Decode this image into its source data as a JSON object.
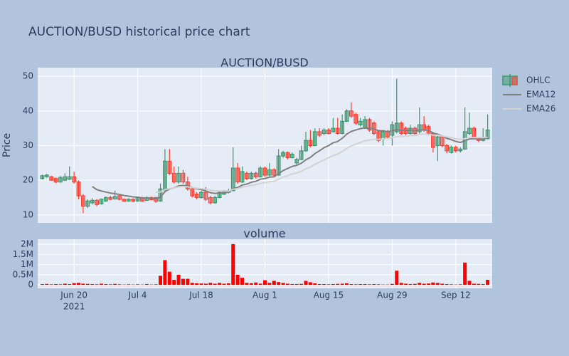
{
  "title": "AUCTION/BUSD historical price chart",
  "chart_data": [
    {
      "type": "candlestick",
      "title": "AUCTION/BUSD",
      "ylabel": "Price",
      "name": "OHLC",
      "increasing_color": "#3d9970",
      "decreasing_color": "#ff4136",
      "x": [
        "2021-06-13",
        "2021-06-14",
        "2021-06-15",
        "2021-06-16",
        "2021-06-17",
        "2021-06-18",
        "2021-06-19",
        "2021-06-20",
        "2021-06-21",
        "2021-06-22",
        "2021-06-23",
        "2021-06-24",
        "2021-06-25",
        "2021-06-26",
        "2021-06-27",
        "2021-06-28",
        "2021-06-29",
        "2021-06-30",
        "2021-07-01",
        "2021-07-02",
        "2021-07-03",
        "2021-07-04",
        "2021-07-05",
        "2021-07-06",
        "2021-07-07",
        "2021-07-08",
        "2021-07-09",
        "2021-07-10",
        "2021-07-11",
        "2021-07-12",
        "2021-07-13",
        "2021-07-14",
        "2021-07-15",
        "2021-07-16",
        "2021-07-17",
        "2021-07-18",
        "2021-07-19",
        "2021-07-20",
        "2021-07-21",
        "2021-07-22",
        "2021-07-23",
        "2021-07-24",
        "2021-07-25",
        "2021-07-26",
        "2021-07-27",
        "2021-07-28",
        "2021-07-29",
        "2021-07-30",
        "2021-07-31",
        "2021-08-01",
        "2021-08-02",
        "2021-08-03",
        "2021-08-04",
        "2021-08-05",
        "2021-08-06",
        "2021-08-07",
        "2021-08-08",
        "2021-08-09",
        "2021-08-10",
        "2021-08-11",
        "2021-08-12",
        "2021-08-13",
        "2021-08-14",
        "2021-08-15",
        "2021-08-16",
        "2021-08-17",
        "2021-08-18",
        "2021-08-19",
        "2021-08-20",
        "2021-08-21",
        "2021-08-22",
        "2021-08-23",
        "2021-08-24",
        "2021-08-25",
        "2021-08-26",
        "2021-08-27",
        "2021-08-28",
        "2021-08-29",
        "2021-08-30",
        "2021-08-31",
        "2021-09-01",
        "2021-09-02",
        "2021-09-03",
        "2021-09-04",
        "2021-09-05",
        "2021-09-06",
        "2021-09-07",
        "2021-09-08",
        "2021-09-09",
        "2021-09-10",
        "2021-09-11",
        "2021-09-12",
        "2021-09-13",
        "2021-09-14",
        "2021-09-15",
        "2021-09-16",
        "2021-09-17",
        "2021-09-18",
        "2021-09-19"
      ],
      "open": [
        20.5,
        21,
        21,
        20.5,
        19.5,
        20,
        20.3,
        21,
        19.5,
        15.5,
        12.5,
        13.5,
        14.2,
        13.2,
        14,
        15,
        14.6,
        15.5,
        14.5,
        14,
        14.5,
        14,
        15,
        14.2,
        15,
        15,
        14,
        17,
        25.5,
        22,
        19.5,
        22,
        19.5,
        17.5,
        16,
        15,
        16.5,
        15,
        13.5,
        15,
        16,
        16.5,
        17,
        23.5,
        19.5,
        22,
        20.5,
        22,
        21,
        23.5,
        21.5,
        23,
        21.5,
        27,
        28,
        26.5,
        25,
        26,
        28.5,
        31.5,
        30,
        34,
        33.5,
        34.5,
        34,
        35,
        33.5,
        37,
        40,
        39,
        36,
        35,
        37.5,
        36.5,
        34,
        32,
        34,
        33,
        34,
        36.5,
        35,
        33.5,
        35,
        34,
        36,
        35.5,
        33.5,
        30,
        32.5,
        30,
        28,
        29.5,
        28.5,
        29,
        33.5,
        35,
        32,
        31.5,
        32
      ],
      "high": [
        21.6,
        21.8,
        21.3,
        20.8,
        21.2,
        22,
        24,
        22.5,
        20,
        16,
        14.5,
        14.8,
        14.5,
        14.8,
        15.3,
        15.5,
        17,
        15.8,
        14.8,
        14.8,
        14.8,
        15.3,
        15.2,
        15.3,
        15.3,
        15.2,
        19,
        29,
        29,
        24,
        24,
        23,
        21,
        18,
        16.5,
        17,
        18,
        15.5,
        15.5,
        17,
        17.2,
        17.5,
        29.5,
        25,
        24,
        22.5,
        22.5,
        22.5,
        24,
        24,
        25,
        23.5,
        29,
        28.5,
        28.3,
        28,
        26.5,
        30,
        34,
        34.5,
        35,
        35,
        35,
        35,
        38,
        38,
        39,
        40.5,
        42.5,
        39.5,
        38,
        38.5,
        38,
        37,
        34.5,
        34.5,
        34.5,
        37,
        49.3,
        37,
        35.5,
        36,
        35.5,
        41,
        38.5,
        36,
        34,
        33,
        33,
        30.5,
        30,
        30,
        29.5,
        41,
        39.5,
        35.5,
        32.5,
        35,
        39
      ],
      "low": [
        20.2,
        20.7,
        19.8,
        19.2,
        19.3,
        19.8,
        20,
        19,
        14.5,
        10.5,
        12,
        13,
        12.5,
        13,
        13.8,
        14.2,
        14.4,
        14.2,
        13.8,
        13.8,
        13.7,
        13.8,
        13.8,
        14,
        14.2,
        13.5,
        13.8,
        16.5,
        21.5,
        19,
        19,
        19,
        17,
        15,
        14.5,
        14.7,
        14,
        13,
        13.2,
        14.8,
        15.7,
        16.2,
        16.8,
        19,
        19.2,
        20,
        20.2,
        20.5,
        20.8,
        21,
        21.2,
        21,
        21.3,
        26.5,
        26,
        26.3,
        24.5,
        25.8,
        28.2,
        29.5,
        29.8,
        32.5,
        33,
        33.2,
        33.8,
        33.2,
        33.3,
        36.8,
        38,
        36,
        35.5,
        34.8,
        34,
        33,
        31,
        30,
        32,
        30,
        33.5,
        33,
        33,
        33.2,
        33,
        33.5,
        34,
        33,
        28,
        25.5,
        29.5,
        27.8,
        27.7,
        28,
        28,
        28.8,
        33,
        32,
        31,
        31.2,
        31.8
      ],
      "close": [
        21.3,
        21.5,
        20,
        19.5,
        20.8,
        21,
        21,
        19.5,
        15.5,
        12.5,
        14,
        14.2,
        13,
        14.5,
        15,
        14.5,
        15.3,
        14.5,
        14,
        14.5,
        14,
        15,
        14,
        15,
        14.4,
        14,
        17.5,
        25.5,
        22,
        19.5,
        22,
        19.5,
        17.5,
        15.5,
        15,
        16.5,
        14.5,
        13.5,
        15,
        16.5,
        16.8,
        17,
        23.5,
        19.5,
        22.5,
        20.5,
        22,
        21,
        23.5,
        21.5,
        23,
        21.5,
        27,
        28,
        26.5,
        27.5,
        26,
        28.5,
        31.5,
        30,
        34,
        33,
        34.5,
        33.5,
        35,
        33.5,
        37,
        40,
        38.5,
        36.5,
        37,
        37.5,
        34.5,
        33.5,
        31.5,
        34,
        32.5,
        36,
        36.5,
        33.5,
        33.5,
        35,
        33.5,
        36,
        34.5,
        33.5,
        29.5,
        32.5,
        30,
        28.5,
        29.5,
        28.5,
        29,
        34,
        35,
        32.5,
        31.5,
        32,
        34.5
      ],
      "series": [
        {
          "name": "EMA12",
          "color": "#808080",
          "values": [
            null,
            null,
            null,
            null,
            null,
            null,
            null,
            null,
            null,
            null,
            null,
            18.2,
            17.3,
            16.9,
            16.6,
            16.3,
            16.1,
            15.9,
            15.6,
            15.4,
            15.2,
            15.1,
            14.9,
            14.9,
            14.8,
            14.7,
            15.1,
            16.7,
            17.5,
            17.8,
            18.4,
            18.5,
            18.4,
            17.9,
            17.5,
            17.3,
            16.9,
            16.4,
            16.2,
            16.3,
            16.4,
            16.5,
            17.6,
            17.9,
            18.6,
            18.9,
            19.4,
            19.7,
            20.3,
            20.5,
            20.9,
            21.0,
            21.9,
            22.8,
            23.4,
            24.0,
            24.3,
            24.9,
            25.9,
            26.6,
            27.7,
            28.5,
            29.4,
            30.0,
            30.8,
            31.2,
            32.1,
            33.3,
            34.1,
            34.5,
            34.9,
            35.1,
            35.0,
            34.8,
            34.3,
            34.3,
            34.0,
            34.3,
            34.6,
            34.4,
            34.4,
            34.4,
            34.3,
            34.5,
            34.5,
            34.4,
            33.6,
            33.3,
            32.8,
            32.1,
            31.7,
            31.2,
            30.9,
            31.4,
            31.9,
            32.0,
            31.9,
            31.9,
            32.3
          ]
        },
        {
          "name": "EMA26",
          "color": "#d3d3d3",
          "values": [
            null,
            null,
            null,
            null,
            null,
            null,
            null,
            null,
            null,
            null,
            null,
            null,
            null,
            null,
            null,
            null,
            null,
            null,
            null,
            null,
            null,
            null,
            null,
            null,
            null,
            16.5,
            16.6,
            17.3,
            17.6,
            17.8,
            18.1,
            18.2,
            18.1,
            17.9,
            17.7,
            17.6,
            17.4,
            17.1,
            16.9,
            16.9,
            16.9,
            16.9,
            17.4,
            17.6,
            18.0,
            18.2,
            18.5,
            18.7,
            19.1,
            19.3,
            19.6,
            19.7,
            20.3,
            20.9,
            21.3,
            21.8,
            22.1,
            22.6,
            23.3,
            23.8,
            24.6,
            25.2,
            25.9,
            26.5,
            27.1,
            27.6,
            28.3,
            29.2,
            29.9,
            30.4,
            30.9,
            31.4,
            31.6,
            31.8,
            31.8,
            32.0,
            32.0,
            32.3,
            32.6,
            32.7,
            32.7,
            32.9,
            32.9,
            33.2,
            33.3,
            33.3,
            33.0,
            33.0,
            32.8,
            32.5,
            32.3,
            32.0,
            31.8,
            32.0,
            32.3,
            32.3,
            32.3,
            32.3,
            32.4
          ]
        }
      ],
      "ylim": [
        7.7,
        52.5
      ],
      "yticks": [
        10,
        20,
        30,
        40,
        50
      ],
      "grid": true,
      "legend": "right"
    },
    {
      "type": "bar",
      "title": "volume",
      "color": "#ff0000",
      "values": [
        40000,
        50000,
        30000,
        40000,
        30000,
        60000,
        40000,
        90000,
        100000,
        60000,
        50000,
        40000,
        30000,
        60000,
        40000,
        30000,
        50000,
        30000,
        20000,
        30000,
        20000,
        30000,
        20000,
        40000,
        20000,
        30000,
        450000,
        1220000,
        650000,
        250000,
        500000,
        300000,
        300000,
        100000,
        80000,
        70000,
        60000,
        100000,
        60000,
        100000,
        60000,
        80000,
        2010000,
        500000,
        350000,
        100000,
        80000,
        120000,
        60000,
        230000,
        100000,
        200000,
        140000,
        100000,
        60000,
        40000,
        40000,
        50000,
        200000,
        130000,
        80000,
        40000,
        40000,
        30000,
        40000,
        50000,
        60000,
        80000,
        40000,
        30000,
        40000,
        40000,
        30000,
        40000,
        30000,
        20000,
        20000,
        50000,
        700000,
        100000,
        60000,
        40000,
        50000,
        100000,
        60000,
        70000,
        120000,
        100000,
        60000,
        40000,
        30000,
        20000,
        30000,
        1100000,
        200000,
        60000,
        50000,
        40000,
        250000
      ],
      "xlim": [
        "2021-06-12",
        "2021-09-20"
      ],
      "xticks": [
        {
          "value": "2021-06-20",
          "label": "Jun 20",
          "sublabel": "2021"
        },
        {
          "value": "2021-07-04",
          "label": "Jul 4"
        },
        {
          "value": "2021-07-18",
          "label": "Jul 18"
        },
        {
          "value": "2021-08-01",
          "label": "Aug 1"
        },
        {
          "value": "2021-08-15",
          "label": "Aug 15"
        },
        {
          "value": "2021-08-29",
          "label": "Aug 29"
        },
        {
          "value": "2021-09-12",
          "label": "Sep 12"
        }
      ],
      "ylim": [
        -170000,
        2250000
      ],
      "yticks": [
        0,
        {
          "value": 500000,
          "label": "0.5M"
        },
        {
          "value": 1000000,
          "label": "1M"
        },
        {
          "value": 1500000,
          "label": "1.5M"
        },
        {
          "value": 2000000,
          "label": "2M"
        }
      ],
      "grid": true
    }
  ]
}
